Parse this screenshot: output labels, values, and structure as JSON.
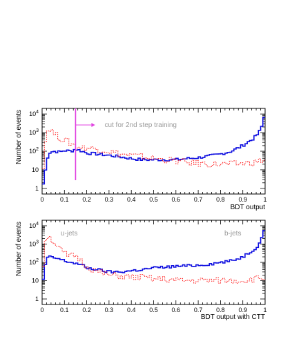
{
  "figure": {
    "colors": {
      "blue": "#1010e0",
      "red": "#ff2020",
      "cut": "#e040e0",
      "annotation": "#999999",
      "axis": "#000000"
    }
  },
  "chart_data": [
    {
      "type": "line",
      "title": "",
      "xlabel": "BDT output",
      "ylabel": "Number of events",
      "xlim": [
        0,
        1
      ],
      "ylim": [
        0.5,
        20000
      ],
      "yscale": "log",
      "grid": false,
      "xticks": [
        "0",
        "0.1",
        "0.2",
        "0.3",
        "0.4",
        "0.5",
        "0.6",
        "0.7",
        "0.8",
        "0.9",
        "1"
      ],
      "yticks": [
        "1",
        "10",
        "10^2",
        "10^3",
        "10^4"
      ],
      "annotation": {
        "text": "cut for 2nd step training",
        "x": 0.15
      },
      "series": [
        {
          "color": "blue",
          "style": "solid",
          "x": [
            0.0,
            0.01,
            0.02,
            0.03,
            0.05,
            0.08,
            0.1,
            0.13,
            0.15,
            0.18,
            0.2,
            0.25,
            0.3,
            0.35,
            0.4,
            0.45,
            0.5,
            0.55,
            0.6,
            0.65,
            0.7,
            0.75,
            0.8,
            0.85,
            0.9,
            0.93,
            0.95,
            0.97,
            0.98,
            0.99,
            1.0
          ],
          "values": [
            1,
            3,
            30,
            80,
            100,
            90,
            110,
            100,
            130,
            100,
            80,
            70,
            60,
            50,
            40,
            35,
            35,
            35,
            35,
            40,
            45,
            55,
            70,
            100,
            200,
            350,
            500,
            900,
            1500,
            3000,
            15000
          ]
        },
        {
          "color": "red",
          "style": "dotted",
          "x": [
            0.0,
            0.01,
            0.02,
            0.03,
            0.05,
            0.08,
            0.1,
            0.12,
            0.15,
            0.18,
            0.2,
            0.25,
            0.3,
            0.35,
            0.4,
            0.45,
            0.5,
            0.55,
            0.6,
            0.65,
            0.7,
            0.75,
            0.8,
            0.85,
            0.9,
            0.95,
            1.0
          ],
          "values": [
            2,
            150,
            800,
            2000,
            1000,
            500,
            400,
            300,
            200,
            150,
            150,
            130,
            100,
            70,
            60,
            50,
            40,
            35,
            30,
            25,
            22,
            20,
            20,
            20,
            22,
            25,
            35
          ]
        }
      ]
    },
    {
      "type": "line",
      "title": "",
      "xlabel": "BDT output with CTT",
      "ylabel": "Number of events",
      "xlim": [
        0,
        1
      ],
      "ylim": [
        0.5,
        20000
      ],
      "yscale": "log",
      "grid": false,
      "xticks": [
        "0",
        "0.1",
        "0.2",
        "0.3",
        "0.4",
        "0.5",
        "0.6",
        "0.7",
        "0.8",
        "0.9",
        "1"
      ],
      "yticks": [
        "1",
        "10",
        "10^2",
        "10^3",
        "10^4"
      ],
      "labels": {
        "left": "u-jets",
        "right": "b-jets"
      },
      "series": [
        {
          "color": "blue",
          "style": "solid",
          "x": [
            0.0,
            0.01,
            0.02,
            0.03,
            0.05,
            0.08,
            0.1,
            0.13,
            0.15,
            0.18,
            0.2,
            0.25,
            0.3,
            0.35,
            0.4,
            0.45,
            0.5,
            0.55,
            0.6,
            0.65,
            0.7,
            0.75,
            0.8,
            0.85,
            0.9,
            0.93,
            0.95,
            0.97,
            0.98,
            0.99,
            1.0
          ],
          "values": [
            3,
            40,
            150,
            200,
            180,
            150,
            120,
            100,
            90,
            70,
            50,
            40,
            30,
            30,
            35,
            40,
            50,
            55,
            60,
            65,
            70,
            80,
            100,
            120,
            200,
            350,
            500,
            900,
            1500,
            3000,
            12000
          ]
        },
        {
          "color": "red",
          "style": "dotted",
          "x": [
            0.0,
            0.01,
            0.02,
            0.03,
            0.05,
            0.08,
            0.1,
            0.12,
            0.15,
            0.18,
            0.2,
            0.25,
            0.3,
            0.35,
            0.4,
            0.45,
            0.5,
            0.55,
            0.6,
            0.65,
            0.7,
            0.75,
            0.8,
            0.85,
            0.9,
            0.95,
            1.0
          ],
          "values": [
            5,
            1000,
            3000,
            2500,
            1500,
            500,
            300,
            200,
            250,
            100,
            60,
            30,
            20,
            18,
            15,
            15,
            12,
            12,
            10,
            10,
            10,
            10,
            10,
            10,
            10,
            12,
            15
          ]
        }
      ]
    }
  ]
}
